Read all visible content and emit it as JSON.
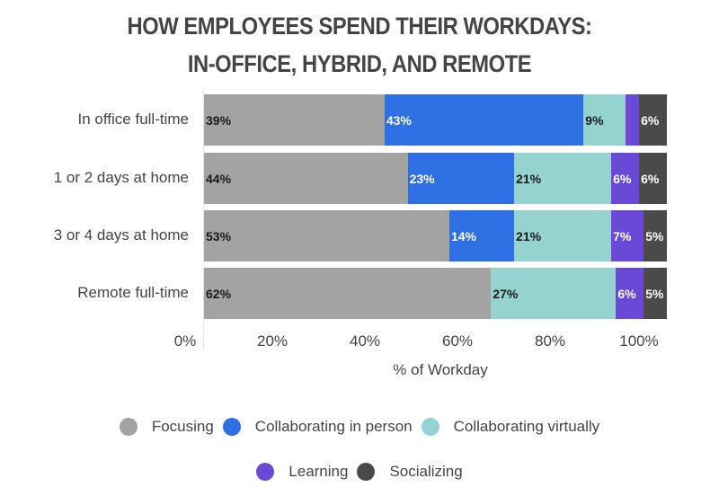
{
  "title_line1": "HOW EMPLOYEES SPEND THEIR WORKDAYS:",
  "title_line2": "IN-OFFICE, HYBRID, AND REMOTE",
  "colors": {
    "Focusing": "#a3a3a3",
    "Collaborating in person": "#2f6fe4",
    "Collaborating virtually": "#94d3cf",
    "Learning": "#6a49d6",
    "Socializing": "#4a4a4a"
  },
  "chart_data": {
    "type": "bar",
    "orientation": "horizontal",
    "stacked": true,
    "title": "HOW EMPLOYEES SPEND THEIR WORKDAYS: IN-OFFICE, HYBRID, AND REMOTE",
    "xlabel": "% of Workday",
    "ylabel": "",
    "xlim": [
      0,
      100
    ],
    "x_ticks": [
      "0%",
      "20%",
      "40%",
      "60%",
      "80%",
      "100%"
    ],
    "categories": [
      "In office full-time",
      "1 or 2 days at home",
      "3 or 4 days at home",
      "Remote full-time"
    ],
    "series": [
      {
        "name": "Focusing",
        "values": [
          39,
          44,
          53,
          62
        ],
        "labels": [
          "39%",
          "44%",
          "53%",
          "62%"
        ]
      },
      {
        "name": "Collaborating in person",
        "values": [
          43,
          23,
          14,
          0
        ],
        "labels": [
          "43%",
          "23%",
          "14%",
          ""
        ]
      },
      {
        "name": "Collaborating virtually",
        "values": [
          9,
          21,
          21,
          27
        ],
        "labels": [
          "9%",
          "21%",
          "21%",
          "27%"
        ]
      },
      {
        "name": "Learning",
        "values": [
          3,
          6,
          7,
          6
        ],
        "labels": [
          "",
          "6%",
          "7%",
          "6%"
        ]
      },
      {
        "name": "Socializing",
        "values": [
          6,
          6,
          5,
          5
        ],
        "labels": [
          "6%",
          "6%",
          "5%",
          "5%"
        ]
      }
    ],
    "legend": [
      "Focusing",
      "Collaborating in person",
      "Collaborating virtually",
      "Learning",
      "Socializing"
    ],
    "legend_position": "bottom",
    "grid": false
  }
}
